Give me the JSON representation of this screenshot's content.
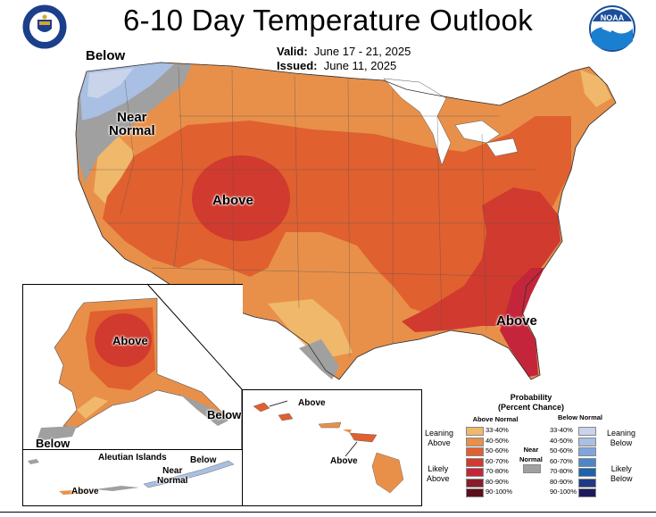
{
  "header": {
    "title": "6-10 Day Temperature Outlook",
    "valid_label": "Valid:",
    "valid_value": "June 17 - 21, 2025",
    "issued_label": "Issued:",
    "issued_value": "June 11, 2025"
  },
  "logos": {
    "left": "seal-icon",
    "right": "noaa-logo-icon",
    "noaa_text": "NOAA"
  },
  "map_labels": {
    "nw_below": "Below",
    "nw_near_normal": "Near\nNormal",
    "rockies_above": "Above",
    "southeast_above": "Above",
    "alaska_above": "Above",
    "alaska_se_below": "Below",
    "alaska_sw_below": "Below",
    "hawaii_above_top": "Above",
    "hawaii_above_bottom": "Above",
    "aleutian_title": "Aleutian Islands",
    "aleutian_below": "Below",
    "aleutian_near_normal": "Near\nNormal",
    "aleutian_above": "Above"
  },
  "legend": {
    "title": "Probability",
    "subtitle": "(Percent Chance)",
    "above_header": "Above Normal",
    "below_header": "Below Normal",
    "near_normal": "Near\nNormal",
    "leaning_above": "Leaning\nAbove",
    "likely_above": "Likely\nAbove",
    "leaning_below": "Leaning\nBelow",
    "likely_below": "Likely\nBelow",
    "above_items": [
      {
        "label": "33-40%",
        "color": "#f0b86b"
      },
      {
        "label": "40-50%",
        "color": "#e8904a"
      },
      {
        "label": "50-60%",
        "color": "#e0602f"
      },
      {
        "label": "60-70%",
        "color": "#d13a2e"
      },
      {
        "label": "70-80%",
        "color": "#c4253a"
      },
      {
        "label": "80-90%",
        "color": "#8a1c2a"
      },
      {
        "label": "90-100%",
        "color": "#5a0f1a"
      }
    ],
    "below_items": [
      {
        "label": "33-40%",
        "color": "#c9d3ea"
      },
      {
        "label": "40-50%",
        "color": "#a9bfe3"
      },
      {
        "label": "50-60%",
        "color": "#7fa6da"
      },
      {
        "label": "60-70%",
        "color": "#4d86c8"
      },
      {
        "label": "70-80%",
        "color": "#1c62ad"
      },
      {
        "label": "80-90%",
        "color": "#1f3a86"
      },
      {
        "label": "90-100%",
        "color": "#1c1a5a"
      }
    ],
    "near_normal_color": "#a0a0a0"
  }
}
